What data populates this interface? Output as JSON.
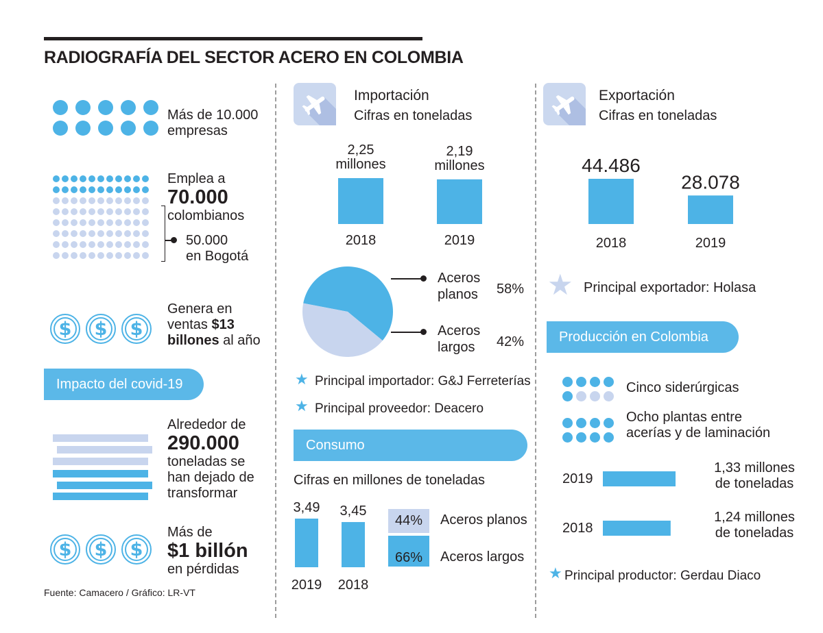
{
  "title": "RADIOGRAFÍA DEL SECTOR ACERO EN COLOMBIA",
  "colors": {
    "blue": "#4db3e6",
    "light": "#c8d5ee",
    "pill": "#5bb8e8",
    "ink": "#231f20"
  },
  "left": {
    "companies": {
      "line1": "Más de 10.000",
      "line2": "empresas"
    },
    "employment": {
      "line1": "Emplea a",
      "number": "70.000",
      "line3": "colombianos",
      "bogota_number": "50.000",
      "bogota_text": "en Bogotá",
      "share_employed": 0.2857
    },
    "sales": {
      "line1": "Genera en",
      "line2a": "ventas ",
      "line2b": "$13",
      "line3a": "billones",
      "line3b": " al año"
    },
    "covid_pill": "Impacto del covid-19",
    "tons": {
      "line1": "Alrededor de",
      "number": "290.000",
      "line3": "toneladas se",
      "line4": "han dejado de",
      "line5": "transformar"
    },
    "losses": {
      "line1": "Más de",
      "number": "$1 billón",
      "line3": "en pérdidas"
    },
    "dollar_symbol": "$",
    "source": "Fuente: Camacero / Gráfico: LR-VT"
  },
  "import": {
    "title": "Importación",
    "subtitle": "Cifras en toneladas",
    "principal_importer": "Principal importador: G&J Ferreterías",
    "principal_supplier": "Principal proveedor:  Deacero",
    "pie_labels": {
      "planos_1": "Aceros",
      "planos_2": "planos",
      "largos_1": "Aceros",
      "largos_2": "largos"
    }
  },
  "consumo": {
    "pill": "Consumo",
    "subtitle": "Cifras en millones de toneladas",
    "legend_planos": "Aceros planos",
    "legend_largos": "Aceros largos",
    "pct_planos": "44%",
    "pct_largos": "66%"
  },
  "export": {
    "title": "Exportación",
    "subtitle": "Cifras en toneladas",
    "principal_exporter": "Principal exportador: Holasa"
  },
  "produccion": {
    "pill": "Producción en Colombia",
    "siderurgicas": "Cinco siderúrgicas",
    "plantas_1": "Ocho plantas entre",
    "plantas_2": "acerías y de laminación",
    "principal_producer": "Principal productor: Gerdau Diaco"
  },
  "chart_data": [
    {
      "type": "bar",
      "title": "Importación",
      "categories": [
        "2018",
        "2019"
      ],
      "values": [
        2.25,
        2.19
      ],
      "value_labels": [
        [
          "2,25",
          "millones"
        ],
        [
          "2,19",
          "millones"
        ]
      ]
    },
    {
      "type": "pie",
      "categories": [
        "Aceros planos",
        "Aceros largos"
      ],
      "values": [
        58,
        42
      ],
      "value_labels": [
        "58%",
        "42%"
      ],
      "colors": [
        "#4db3e6",
        "#c8d5ee"
      ]
    },
    {
      "type": "bar",
      "title": "Exportación",
      "categories": [
        "2018",
        "2019"
      ],
      "values": [
        44486,
        28078
      ],
      "value_labels": [
        "44.486",
        "28.078"
      ]
    },
    {
      "type": "bar",
      "title": "Consumo",
      "categories": [
        "2019",
        "2018"
      ],
      "values": [
        3.49,
        3.45
      ],
      "value_labels": [
        "3,49",
        "3,45"
      ]
    },
    {
      "type": "bar",
      "title": "Producción en Colombia",
      "categories": [
        "2019",
        "2018"
      ],
      "values": [
        1.33,
        1.24
      ],
      "value_labels": [
        [
          "1,33 millones",
          "de toneladas"
        ],
        [
          "1,24 millones",
          "de toneladas"
        ]
      ]
    }
  ]
}
